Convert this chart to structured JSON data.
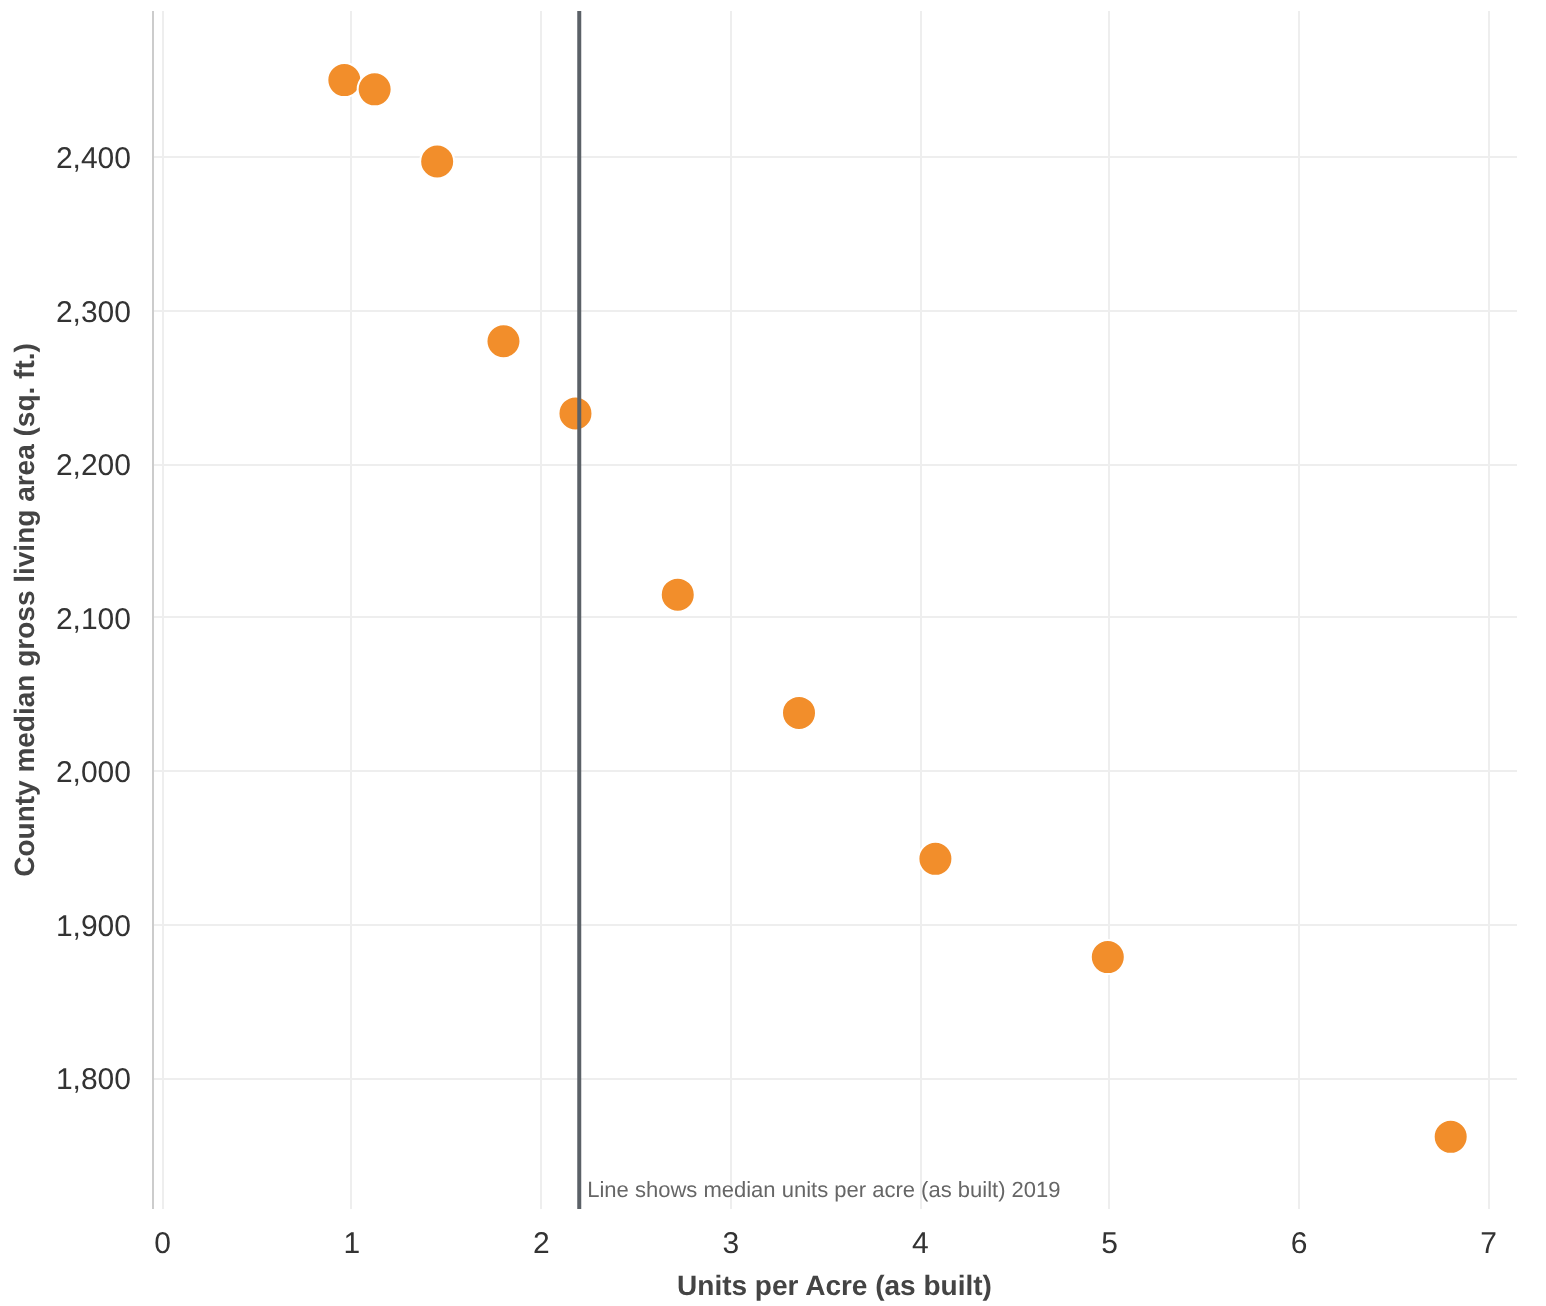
{
  "chart_data": {
    "type": "scatter",
    "xlabel": "Units per Acre (as built)",
    "ylabel": "County median gross living area (sq. ft.)",
    "x": [
      0.96,
      1.12,
      1.45,
      1.8,
      2.18,
      2.72,
      3.36,
      4.08,
      4.99,
      6.8
    ],
    "series": [
      {
        "color": "#f28e2b",
        "values": [
          2450,
          2444,
          2397,
          2280,
          2233,
          2115,
          2038,
          1943,
          1879,
          1762
        ]
      }
    ],
    "marker": "circle",
    "grid": true,
    "xlim": [
      -0.05,
      7.15
    ],
    "xticks": [
      0,
      1,
      2,
      3,
      4,
      5,
      6,
      7
    ],
    "ylim": [
      1715,
      2495
    ],
    "yticks": [
      {
        "value": 1800,
        "label": "1,800"
      },
      {
        "value": 1900,
        "label": "1,900"
      },
      {
        "value": 2000,
        "label": "2,000"
      },
      {
        "value": 2100,
        "label": "2,100"
      },
      {
        "value": 2200,
        "label": "2,200"
      },
      {
        "value": 2300,
        "label": "2,300"
      },
      {
        "value": 2400,
        "label": "2,400"
      }
    ],
    "ref_lines": [
      {
        "axis": "x",
        "value": 2.2,
        "label": "Line shows median units per acre (as built) 2019",
        "color": "#5b6167"
      }
    ]
  }
}
